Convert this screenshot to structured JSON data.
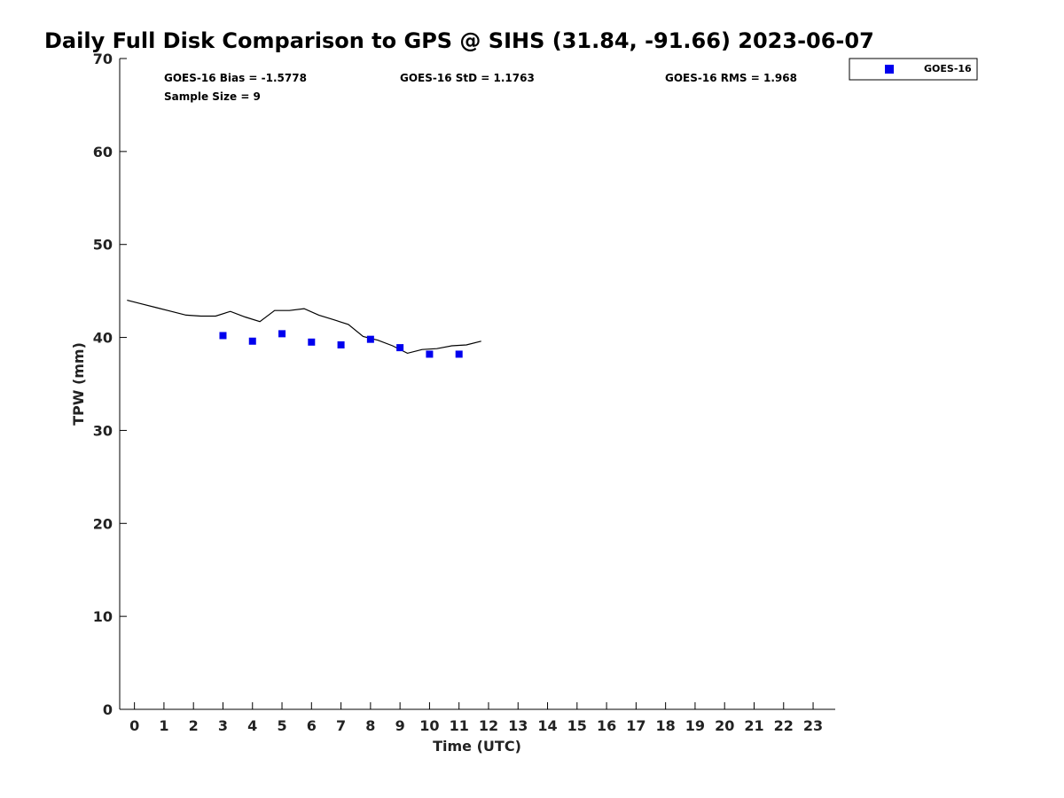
{
  "chart_data": {
    "type": "scatter",
    "title": "Daily Full Disk Comparison to GPS @ SIHS (31.84, -91.66) 2023-06-07",
    "xlabel": "Time (UTC)",
    "ylabel": "TPW (mm)",
    "xlim": [
      -0.5,
      23.75
    ],
    "ylim": [
      0,
      70
    ],
    "x_ticks": [
      0,
      1,
      2,
      3,
      4,
      5,
      6,
      7,
      8,
      9,
      10,
      11,
      12,
      13,
      14,
      15,
      16,
      17,
      18,
      19,
      20,
      21,
      22,
      23
    ],
    "y_ticks": [
      0,
      10,
      20,
      30,
      40,
      50,
      60,
      70
    ],
    "grid": false,
    "legend_position": "top-right",
    "stats": [
      {
        "label": "GOES-16 Bias = -1.5778"
      },
      {
        "label": "GOES-16 StD = 1.1763"
      },
      {
        "label": "GOES-16 RMS = 1.968"
      },
      {
        "label": "Sample Size = 9"
      }
    ],
    "series": [
      {
        "name": "GOES-16",
        "kind": "marker",
        "marker": "square",
        "color": "#0000ee",
        "x": [
          3,
          4,
          5,
          6,
          7,
          8,
          9,
          10,
          11
        ],
        "y": [
          40.2,
          39.6,
          40.4,
          39.5,
          39.2,
          39.8,
          38.9,
          38.2,
          38.2
        ]
      },
      {
        "kind": "line",
        "color": "#000000",
        "x": [
          -0.25,
          0.25,
          0.75,
          1.25,
          1.75,
          2.25,
          2.75,
          3.25,
          3.75,
          4.25,
          4.75,
          5.25,
          5.75,
          6.25,
          6.75,
          7.25,
          7.75,
          8.25,
          8.75,
          9.25,
          9.75,
          10.25,
          10.75,
          11.25,
          11.75
        ],
        "y": [
          44.0,
          43.6,
          43.2,
          42.8,
          42.4,
          42.3,
          42.3,
          42.8,
          42.2,
          41.7,
          42.9,
          42.9,
          43.1,
          42.4,
          41.9,
          41.4,
          40.1,
          39.7,
          39.1,
          38.3,
          38.7,
          38.8,
          39.1,
          39.2,
          39.6
        ]
      }
    ]
  }
}
